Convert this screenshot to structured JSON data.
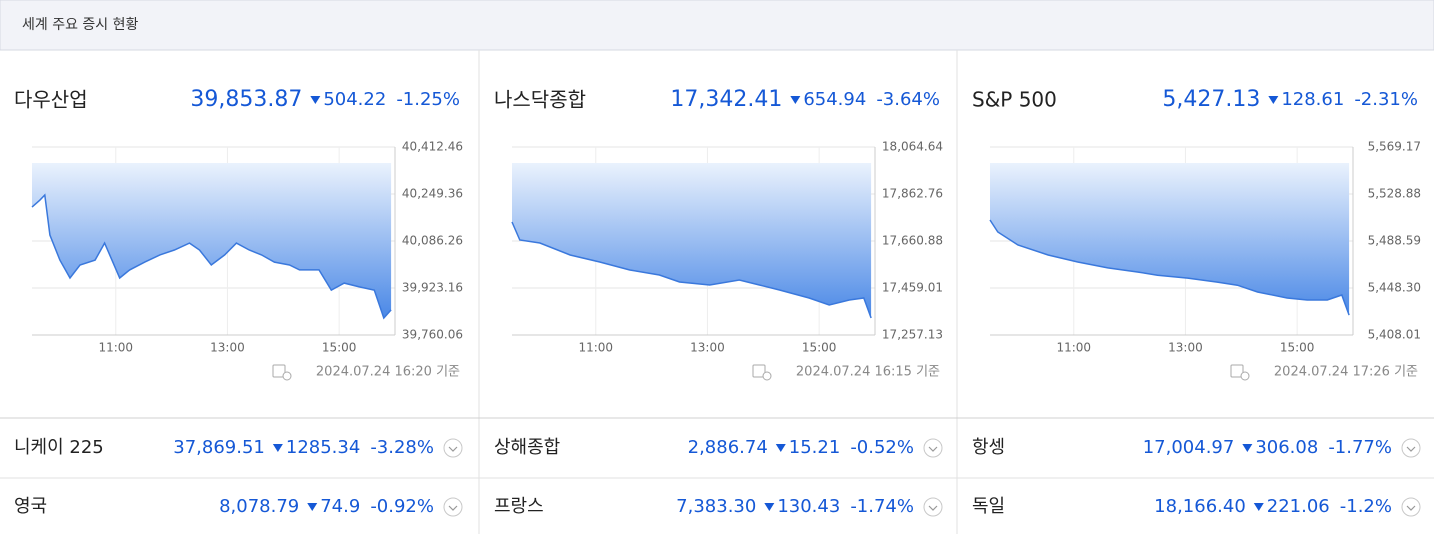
{
  "header": {
    "title": "세계 주요 증시 현황"
  },
  "panels": [
    {
      "name": "다우산업",
      "value": "39,853.87",
      "change": "504.22",
      "pct": "-1.25%",
      "timestamp": "2024.07.24 16:20 기준"
    },
    {
      "name": "나스닥종합",
      "value": "17,342.41",
      "change": "654.94",
      "pct": "-3.64%",
      "timestamp": "2024.07.24 16:15 기준"
    },
    {
      "name": "S&P 500",
      "value": "5,427.13",
      "change": "128.61",
      "pct": "-2.31%",
      "timestamp": "2024.07.24 17:26 기준"
    }
  ],
  "chart_data": [
    {
      "type": "area",
      "color": "#3a78dc",
      "grid": true,
      "xlim": [
        9.5,
        16
      ],
      "xticks": [
        {
          "value": 11,
          "label": "11:00"
        },
        {
          "value": 13,
          "label": "13:00"
        },
        {
          "value": 15,
          "label": "15:00"
        }
      ],
      "ylim": [
        39760.06,
        40412.46
      ],
      "yticks": [
        {
          "value": 40412.46,
          "label": "40,412.46"
        },
        {
          "value": 40249.36,
          "label": "40,249.36"
        },
        {
          "value": 40086.26,
          "label": "40,086.26"
        },
        {
          "value": 39923.16,
          "label": "39,923.16"
        },
        {
          "value": 39760.06,
          "label": "39,760.06"
        }
      ],
      "x": [
        9.5,
        9.64,
        9.73,
        9.82,
        10.0,
        10.18,
        10.36,
        10.63,
        10.8,
        11.07,
        11.25,
        11.52,
        11.79,
        12.05,
        12.32,
        12.5,
        12.71,
        12.95,
        13.16,
        13.39,
        13.61,
        13.84,
        14.11,
        14.29,
        14.64,
        14.86,
        15.09,
        15.36,
        15.63,
        15.8,
        15.93
      ],
      "values": [
        40204,
        40228,
        40246,
        40107,
        40020,
        39958,
        40003,
        40020,
        40079,
        39958,
        39986,
        40013,
        40038,
        40055,
        40079,
        40055,
        40003,
        40038,
        40079,
        40055,
        40038,
        40013,
        40003,
        39986,
        39986,
        39916,
        39940,
        39927,
        39916,
        39819,
        39847
      ]
    },
    {
      "type": "area",
      "color": "#3a78dc",
      "grid": true,
      "xlim": [
        9.5,
        16
      ],
      "xticks": [
        {
          "value": 11,
          "label": "11:00"
        },
        {
          "value": 13,
          "label": "13:00"
        },
        {
          "value": 15,
          "label": "15:00"
        }
      ],
      "ylim": [
        17257.13,
        18064.64
      ],
      "yticks": [
        {
          "value": 18064.64,
          "label": "18,064.64"
        },
        {
          "value": 17862.76,
          "label": "17,862.76"
        },
        {
          "value": 17660.88,
          "label": "17,660.88"
        },
        {
          "value": 17459.01,
          "label": "17,459.01"
        },
        {
          "value": 17257.13,
          "label": "17,257.13"
        }
      ],
      "x": [
        9.5,
        9.64,
        10.0,
        10.54,
        11.07,
        11.61,
        12.14,
        12.5,
        13.04,
        13.57,
        13.93,
        14.29,
        14.82,
        15.18,
        15.54,
        15.8,
        15.93
      ],
      "values": [
        17742.5,
        17665.2,
        17652.3,
        17600.8,
        17570.7,
        17536.3,
        17514.9,
        17484.8,
        17471.9,
        17493.4,
        17471.9,
        17450.5,
        17416.1,
        17386.1,
        17407.5,
        17416.1,
        17330.2
      ]
    },
    {
      "type": "area",
      "color": "#3a78dc",
      "grid": true,
      "xlim": [
        9.5,
        16
      ],
      "xticks": [
        {
          "value": 11,
          "label": "11:00"
        },
        {
          "value": 13,
          "label": "13:00"
        },
        {
          "value": 15,
          "label": "15:00"
        }
      ],
      "ylim": [
        5408.01,
        5569.17
      ],
      "yticks": [
        {
          "value": 5569.17,
          "label": "5,569.17"
        },
        {
          "value": 5528.88,
          "label": "5,528.88"
        },
        {
          "value": 5488.59,
          "label": "5,488.59"
        },
        {
          "value": 5448.3,
          "label": "5,448.30"
        },
        {
          "value": 5408.01,
          "label": "5,408.01"
        }
      ],
      "x": [
        9.5,
        9.64,
        10.0,
        10.54,
        11.07,
        11.61,
        12.14,
        12.5,
        13.04,
        13.57,
        13.93,
        14.29,
        14.82,
        15.18,
        15.54,
        15.8,
        15.93
      ],
      "values": [
        5506.6,
        5496.3,
        5485.2,
        5476.6,
        5470.6,
        5465.5,
        5462.0,
        5459.3,
        5456.8,
        5453.4,
        5450.7,
        5444.9,
        5439.7,
        5438.0,
        5438.0,
        5442.3,
        5425.1
      ]
    }
  ],
  "rows": [
    {
      "name": "니케이 225",
      "value": "37,869.51",
      "change": "1285.34",
      "pct": "-3.28%"
    },
    {
      "name": "상해종합",
      "value": "2,886.74",
      "change": "15.21",
      "pct": "-0.52%"
    },
    {
      "name": "항셍",
      "value": "17,004.97",
      "change": "306.08",
      "pct": "-1.77%"
    },
    {
      "name": "영국",
      "value": "8,078.79",
      "change": "74.9",
      "pct": "-0.92%"
    },
    {
      "name": "프랑스",
      "value": "7,383.30",
      "change": "130.43",
      "pct": "-1.74%"
    },
    {
      "name": "독일",
      "value": "18,166.40",
      "change": "221.06",
      "pct": "-1.2%"
    }
  ]
}
